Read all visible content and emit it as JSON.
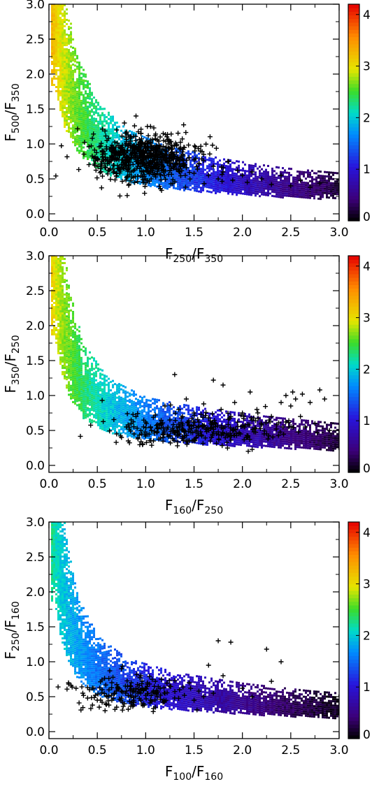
{
  "chart_data": [
    {
      "type": "scatter",
      "subtype": "2d-density-with-overlaid-points",
      "xlabel": {
        "main": "F",
        "sub1": "250",
        "sep": "/F",
        "sub2": "350"
      },
      "ylabel": {
        "main": "F",
        "sub1": "500",
        "sep": "/F",
        "sub2": "350"
      },
      "xlim": [
        0,
        3
      ],
      "ylim": [
        -0.1,
        3
      ],
      "xticks": [
        "0.0",
        "0.5",
        "1.0",
        "1.5",
        "2.0",
        "2.5",
        "3.0"
      ],
      "yticks": [
        "0.0",
        "0.5",
        "1.0",
        "1.5",
        "2.0",
        "2.5",
        "3.0"
      ],
      "colorbar": {
        "ticks": [
          "0",
          "1",
          "2",
          "3",
          "4"
        ],
        "range": [
          0,
          4.2
        ]
      },
      "density_ridge": [
        [
          0.05,
          3.0
        ],
        [
          0.15,
          2.0
        ],
        [
          0.3,
          1.4
        ],
        [
          0.5,
          1.0
        ],
        [
          0.8,
          0.75
        ],
        [
          1.2,
          0.6
        ],
        [
          1.8,
          0.48
        ],
        [
          2.4,
          0.4
        ],
        [
          3.0,
          0.35
        ]
      ],
      "density_color_range": [
        3.5,
        0.2
      ],
      "points": [
        [
          0.55,
          0.9
        ],
        [
          0.6,
          1.05
        ],
        [
          0.65,
          0.78
        ],
        [
          0.7,
          1.2
        ],
        [
          0.72,
          0.65
        ],
        [
          0.75,
          0.95
        ],
        [
          0.78,
          1.3
        ],
        [
          0.8,
          0.82
        ],
        [
          0.82,
          0.7
        ],
        [
          0.85,
          1.1
        ],
        [
          0.85,
          0.6
        ],
        [
          0.88,
          0.88
        ],
        [
          0.9,
          1.4
        ],
        [
          0.9,
          0.75
        ],
        [
          0.92,
          0.95
        ],
        [
          0.95,
          0.68
        ],
        [
          0.95,
          1.15
        ],
        [
          0.97,
          0.82
        ],
        [
          1.0,
          0.9
        ],
        [
          1.0,
          0.62
        ],
        [
          1.02,
          1.0
        ],
        [
          1.05,
          0.76
        ],
        [
          1.05,
          1.25
        ],
        [
          1.08,
          0.85
        ],
        [
          1.1,
          0.7
        ],
        [
          1.1,
          0.95
        ],
        [
          1.12,
          0.58
        ],
        [
          1.15,
          0.8
        ],
        [
          1.15,
          1.1
        ],
        [
          1.18,
          0.68
        ],
        [
          1.2,
          0.9
        ],
        [
          1.22,
          0.75
        ],
        [
          1.25,
          0.62
        ],
        [
          1.25,
          1.02
        ],
        [
          1.28,
          0.8
        ],
        [
          1.3,
          0.7
        ],
        [
          1.32,
          0.88
        ],
        [
          1.35,
          0.6
        ],
        [
          1.38,
          0.78
        ],
        [
          1.4,
          0.95
        ],
        [
          1.42,
          0.66
        ],
        [
          1.45,
          0.8
        ],
        [
          1.5,
          0.58
        ],
        [
          1.55,
          0.72
        ],
        [
          1.6,
          0.85
        ],
        [
          1.65,
          0.55
        ],
        [
          1.7,
          0.68
        ],
        [
          1.75,
          0.5
        ],
        [
          1.8,
          0.6
        ],
        [
          1.85,
          0.75
        ],
        [
          1.9,
          0.48
        ],
        [
          1.95,
          0.62
        ],
        [
          2.0,
          0.55
        ],
        [
          2.05,
          0.45
        ],
        [
          2.1,
          0.6
        ],
        [
          2.2,
          0.5
        ],
        [
          2.3,
          0.42
        ],
        [
          2.4,
          0.55
        ],
        [
          2.5,
          0.4
        ],
        [
          2.6,
          0.48
        ],
        [
          2.7,
          0.38
        ],
        [
          2.8,
          0.44
        ]
      ],
      "point_cluster": {
        "center": [
          0.98,
          0.8
        ],
        "spread": [
          0.28,
          0.17
        ],
        "count": 650
      }
    },
    {
      "type": "scatter",
      "subtype": "2d-density-with-overlaid-points",
      "xlabel": {
        "main": "F",
        "sub1": "160",
        "sep": "/F",
        "sub2": "250"
      },
      "ylabel": {
        "main": "F",
        "sub1": "350",
        "sep": "/F",
        "sub2": "250"
      },
      "xlim": [
        0,
        3
      ],
      "ylim": [
        -0.1,
        3
      ],
      "xticks": [
        "0.0",
        "0.5",
        "1.0",
        "1.5",
        "2.0",
        "2.5",
        "3.0"
      ],
      "yticks": [
        "0.0",
        "0.5",
        "1.0",
        "1.5",
        "2.0",
        "2.5",
        "3.0"
      ],
      "colorbar": {
        "ticks": [
          "0",
          "1",
          "2",
          "3",
          "4"
        ],
        "range": [
          0,
          4.2
        ]
      },
      "density_ridge": [
        [
          0.05,
          3.0
        ],
        [
          0.12,
          2.2
        ],
        [
          0.2,
          1.6
        ],
        [
          0.35,
          1.1
        ],
        [
          0.6,
          0.78
        ],
        [
          1.0,
          0.6
        ],
        [
          1.6,
          0.5
        ],
        [
          2.3,
          0.42
        ],
        [
          3.0,
          0.36
        ]
      ],
      "density_color_range": [
        3.3,
        0.2
      ],
      "points": [
        [
          0.55,
          0.93
        ],
        [
          0.7,
          0.45
        ],
        [
          0.75,
          0.4
        ],
        [
          0.8,
          0.55
        ],
        [
          0.82,
          0.35
        ],
        [
          0.85,
          0.6
        ],
        [
          0.88,
          0.45
        ],
        [
          0.9,
          0.7
        ],
        [
          0.92,
          0.38
        ],
        [
          0.95,
          0.5
        ],
        [
          1.0,
          0.62
        ],
        [
          1.0,
          0.42
        ],
        [
          1.05,
          0.55
        ],
        [
          1.08,
          0.35
        ],
        [
          1.1,
          0.72
        ],
        [
          1.12,
          0.48
        ],
        [
          1.15,
          0.6
        ],
        [
          1.18,
          0.4
        ],
        [
          1.2,
          0.85
        ],
        [
          1.22,
          0.52
        ],
        [
          1.25,
          0.65
        ],
        [
          1.28,
          0.38
        ],
        [
          1.3,
          1.3
        ],
        [
          1.32,
          0.55
        ],
        [
          1.35,
          0.45
        ],
        [
          1.38,
          0.7
        ],
        [
          1.4,
          0.4
        ],
        [
          1.42,
          0.95
        ],
        [
          1.45,
          0.58
        ],
        [
          1.48,
          0.35
        ],
        [
          1.5,
          0.75
        ],
        [
          1.52,
          0.48
        ],
        [
          1.55,
          0.62
        ],
        [
          1.58,
          0.42
        ],
        [
          1.6,
          0.88
        ],
        [
          1.62,
          0.52
        ],
        [
          1.65,
          0.68
        ],
        [
          1.68,
          0.4
        ],
        [
          1.7,
          1.22
        ],
        [
          1.72,
          0.6
        ],
        [
          1.75,
          0.48
        ],
        [
          1.78,
          0.8
        ],
        [
          1.8,
          1.15
        ],
        [
          1.82,
          0.55
        ],
        [
          1.85,
          0.42
        ],
        [
          1.88,
          0.7
        ],
        [
          1.9,
          0.5
        ],
        [
          1.92,
          0.9
        ],
        [
          1.95,
          0.62
        ],
        [
          1.98,
          0.45
        ],
        [
          2.0,
          0.75
        ],
        [
          2.02,
          0.55
        ],
        [
          2.05,
          0.4
        ],
        [
          2.08,
          1.05
        ],
        [
          2.1,
          0.65
        ],
        [
          2.12,
          0.48
        ],
        [
          2.15,
          0.8
        ],
        [
          2.2,
          0.58
        ],
        [
          2.25,
          0.45
        ],
        [
          2.3,
          0.7
        ],
        [
          2.35,
          0.52
        ],
        [
          2.4,
          0.9
        ],
        [
          2.45,
          1.0
        ],
        [
          2.48,
          0.55
        ],
        [
          2.5,
          0.85
        ],
        [
          2.52,
          1.05
        ],
        [
          2.55,
          0.95
        ],
        [
          2.58,
          0.48
        ],
        [
          2.6,
          0.7
        ],
        [
          2.62,
          1.02
        ],
        [
          2.65,
          0.55
        ],
        [
          2.7,
          0.9
        ],
        [
          2.75,
          0.6
        ],
        [
          2.8,
          1.08
        ],
        [
          2.85,
          0.95
        ],
        [
          2.9,
          0.5
        ]
      ],
      "point_cluster": {
        "center": [
          1.55,
          0.52
        ],
        "spread": [
          0.45,
          0.12
        ],
        "count": 260
      }
    },
    {
      "type": "scatter",
      "subtype": "2d-density-with-overlaid-points",
      "xlabel": {
        "main": "F",
        "sub1": "100",
        "sep": "/F",
        "sub2": "160"
      },
      "ylabel": {
        "main": "F",
        "sub1": "250",
        "sep": "/F",
        "sub2": "160"
      },
      "xlim": [
        0,
        3
      ],
      "ylim": [
        -0.1,
        3
      ],
      "xticks": [
        "0.0",
        "0.5",
        "1.0",
        "1.5",
        "2.0",
        "2.5",
        "3.0"
      ],
      "yticks": [
        "0.0",
        "0.5",
        "1.0",
        "1.5",
        "2.0",
        "2.5",
        "3.0"
      ],
      "colorbar": {
        "ticks": [
          "0",
          "1",
          "2",
          "3",
          "4"
        ],
        "range": [
          0,
          4.2
        ]
      },
      "density_ridge": [
        [
          0.05,
          3.0
        ],
        [
          0.1,
          2.3
        ],
        [
          0.18,
          1.7
        ],
        [
          0.3,
          1.2
        ],
        [
          0.5,
          0.85
        ],
        [
          0.8,
          0.65
        ],
        [
          1.3,
          0.52
        ],
        [
          2.0,
          0.42
        ],
        [
          2.7,
          0.35
        ],
        [
          3.0,
          0.33
        ]
      ],
      "density_color_range": [
        2.4,
        0.1
      ],
      "points": [
        [
          0.28,
          0.62
        ],
        [
          0.35,
          0.55
        ],
        [
          0.4,
          0.48
        ],
        [
          0.42,
          0.6
        ],
        [
          0.45,
          0.38
        ],
        [
          0.48,
          0.52
        ],
        [
          0.5,
          0.45
        ],
        [
          0.52,
          0.35
        ],
        [
          0.55,
          0.6
        ],
        [
          0.55,
          0.42
        ],
        [
          0.58,
          0.3
        ],
        [
          0.6,
          0.5
        ],
        [
          0.62,
          0.38
        ],
        [
          0.65,
          0.7
        ],
        [
          0.65,
          0.45
        ],
        [
          0.68,
          0.55
        ],
        [
          0.7,
          0.35
        ],
        [
          0.72,
          0.62
        ],
        [
          0.75,
          0.48
        ],
        [
          0.75,
          0.9
        ],
        [
          0.78,
          0.4
        ],
        [
          0.8,
          0.58
        ],
        [
          0.82,
          0.32
        ],
        [
          0.85,
          0.7
        ],
        [
          0.85,
          0.5
        ],
        [
          0.88,
          0.42
        ],
        [
          0.9,
          0.62
        ],
        [
          0.92,
          0.55
        ],
        [
          0.95,
          0.45
        ],
        [
          0.95,
          0.8
        ],
        [
          0.98,
          0.6
        ],
        [
          1.0,
          0.52
        ],
        [
          1.02,
          0.68
        ],
        [
          1.05,
          0.45
        ],
        [
          1.08,
          0.58
        ],
        [
          1.1,
          0.72
        ],
        [
          1.12,
          0.5
        ],
        [
          1.15,
          0.62
        ],
        [
          1.18,
          0.42
        ],
        [
          1.2,
          0.55
        ],
        [
          1.25,
          0.65
        ],
        [
          1.3,
          0.48
        ],
        [
          1.35,
          0.6
        ],
        [
          1.4,
          0.52
        ],
        [
          1.45,
          0.7
        ],
        [
          1.5,
          0.45
        ],
        [
          1.55,
          0.58
        ],
        [
          1.6,
          0.5
        ],
        [
          1.65,
          0.95
        ],
        [
          1.7,
          0.55
        ],
        [
          1.75,
          1.3
        ],
        [
          1.8,
          0.8
        ],
        [
          1.88,
          1.28
        ],
        [
          2.0,
          0.62
        ],
        [
          2.1,
          0.5
        ],
        [
          2.25,
          1.18
        ],
        [
          2.3,
          0.72
        ],
        [
          2.4,
          1.0
        ]
      ],
      "point_cluster": {
        "center": [
          0.85,
          0.55
        ],
        "spread": [
          0.3,
          0.12
        ],
        "count": 140
      }
    }
  ]
}
